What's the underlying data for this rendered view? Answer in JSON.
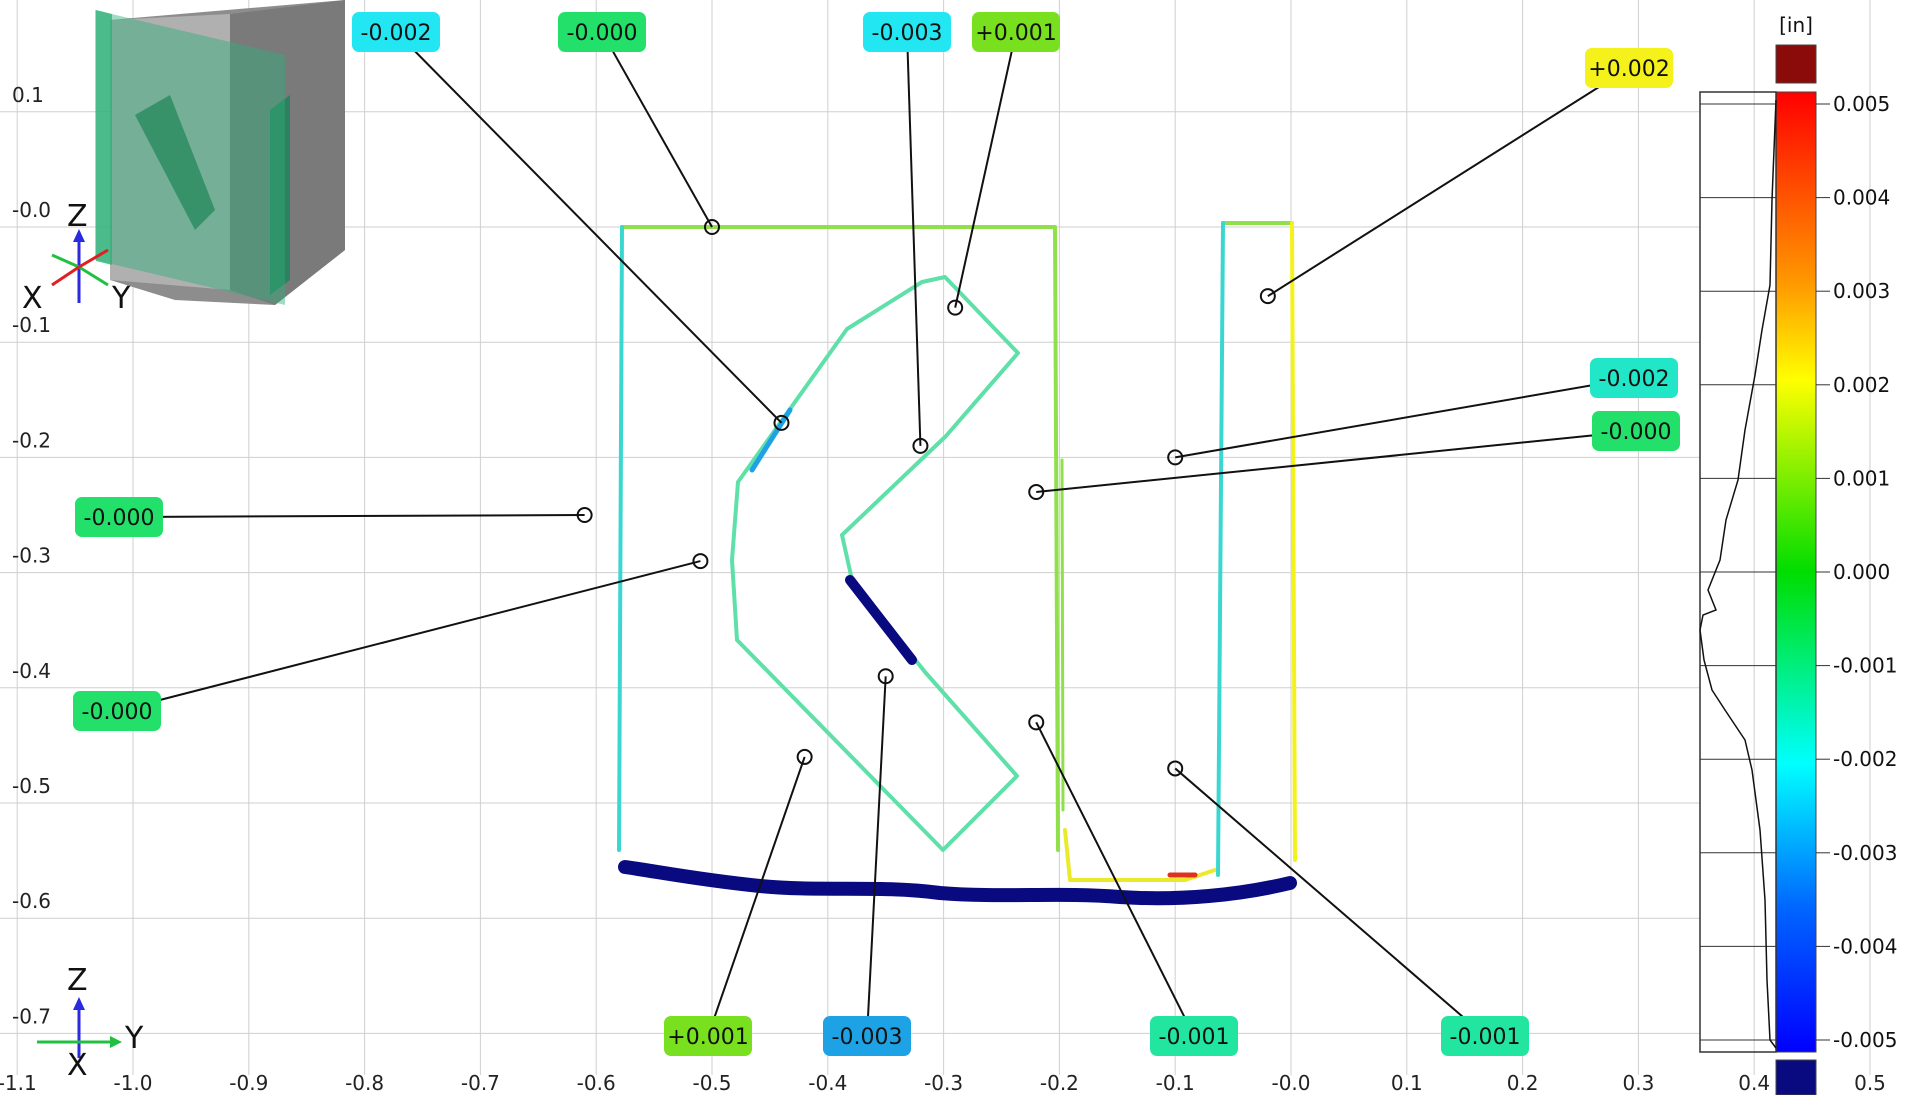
{
  "x_axis_ticks": [
    "-1.1",
    "-1.0",
    "-0.9",
    "-0.8",
    "-0.7",
    "-0.6",
    "-0.5",
    "-0.4",
    "-0.3",
    "-0.2",
    "-0.1",
    "-0.0",
    "0.1",
    "0.2",
    "0.3",
    "0.4",
    "0.5"
  ],
  "y_axis_ticks": [
    "0.1",
    "-0.0",
    "-0.1",
    "-0.2",
    "-0.3",
    "-0.4",
    "-0.5",
    "-0.6",
    "-0.7"
  ],
  "callouts": [
    {
      "label": "-0.002",
      "color": "#22e6f2",
      "x": -0.44,
      "y": -0.17
    },
    {
      "label": "-0.000",
      "color": "#22e06a",
      "x": -0.5,
      "y": 0.0
    },
    {
      "label": "-0.003",
      "color": "#22e6f2",
      "x": -0.32,
      "y": -0.19
    },
    {
      "label": "+0.001",
      "color": "#78e01e",
      "x": -0.29,
      "y": -0.07
    },
    {
      "label": "+0.002",
      "color": "#f4f21a",
      "x": -0.02,
      "y": -0.06
    },
    {
      "label": "-0.002",
      "color": "#22e6c8",
      "x": -0.1,
      "y": -0.2
    },
    {
      "label": "-0.000",
      "color": "#22e06a",
      "x": -0.22,
      "y": -0.23
    },
    {
      "label": "-0.000",
      "color": "#22e06a",
      "x": -0.61,
      "y": -0.25
    },
    {
      "label": "-0.000",
      "color": "#22e06a",
      "x": -0.51,
      "y": -0.29
    },
    {
      "label": "+0.001",
      "color": "#78e01e",
      "x": -0.42,
      "y": -0.46
    },
    {
      "label": "-0.003",
      "color": "#1ea2e6",
      "x": -0.35,
      "y": -0.39
    },
    {
      "label": "-0.001",
      "color": "#22e6a0",
      "x": -0.22,
      "y": -0.43
    },
    {
      "label": "-0.001",
      "color": "#22e6a0",
      "x": -0.1,
      "y": -0.47
    }
  ],
  "color_scale": {
    "unit": "[in]",
    "labels": [
      "0.005",
      "0.004",
      "0.003",
      "0.002",
      "0.001",
      "0.000",
      "-0.001",
      "-0.002",
      "-0.003",
      "-0.004",
      "-0.005"
    ],
    "over_color": "#8b0a0a",
    "under_color": "#0a0a80"
  },
  "triad": {
    "top": {
      "z": "Z",
      "x": "X",
      "y": "Y"
    },
    "bottom": {
      "z": "Z",
      "x": "X",
      "y": "Y"
    }
  }
}
